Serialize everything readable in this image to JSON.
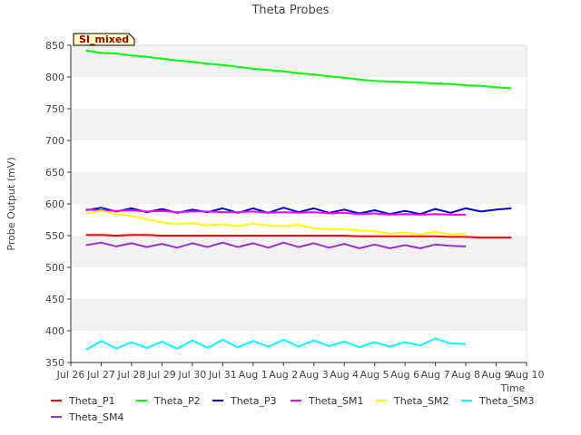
{
  "chart_data": {
    "type": "line",
    "title": "Theta Probes",
    "xlabel": "Time",
    "ylabel": "Probe Output (mV)",
    "ylim": [
      350,
      850
    ],
    "xlim": [
      0,
      15
    ],
    "yticks": [
      350,
      400,
      450,
      500,
      550,
      600,
      650,
      700,
      750,
      800,
      850
    ],
    "xtick_labels": [
      "Jul 26",
      "Jul 27",
      "Jul 28",
      "Jul 29",
      "Jul 30",
      "Jul 31",
      "Aug 1",
      "Aug 2",
      "Aug 3",
      "Aug 4",
      "Aug 5",
      "Aug 6",
      "Aug 7",
      "Aug 8",
      "Aug 9",
      "Aug 10"
    ],
    "annotation": "SI_mixed",
    "legend_placement": "bottom",
    "grid": "alternating horizontal bands",
    "series": [
      {
        "name": "Theta_P1",
        "color": "#ff0000",
        "x": [
          0.5,
          1,
          1.5,
          2,
          2.5,
          3,
          3.5,
          4,
          4.5,
          5,
          5.5,
          6,
          6.5,
          7,
          7.5,
          8,
          8.5,
          9,
          9.5,
          10,
          10.5,
          11,
          11.5,
          12,
          12.5,
          13,
          13.5,
          14,
          14.5
        ],
        "y": [
          551,
          551,
          550,
          551,
          551,
          550,
          550,
          550,
          550,
          550,
          550,
          550,
          550,
          550,
          550,
          550,
          550,
          550,
          549,
          549,
          549,
          549,
          549,
          549,
          548,
          548,
          547,
          547,
          547
        ]
      },
      {
        "name": "Theta_P2",
        "color": "#00ff00",
        "x": [
          0.5,
          1,
          1.5,
          2,
          2.5,
          3,
          3.5,
          4,
          4.5,
          5,
          5.5,
          6,
          6.5,
          7,
          7.5,
          8,
          8.5,
          9,
          9.5,
          10,
          10.5,
          11,
          11.5,
          12,
          12.5,
          13,
          13.5,
          14,
          14.5
        ],
        "y": [
          842,
          838,
          837,
          834,
          832,
          829,
          826,
          824,
          821,
          819,
          816,
          813,
          811,
          809,
          806,
          804,
          801,
          799,
          796,
          794,
          793,
          792,
          791,
          790,
          789,
          787,
          786,
          784,
          782
        ]
      },
      {
        "name": "Theta_P3",
        "color": "#0000cc",
        "x": [
          0.5,
          1,
          1.5,
          2,
          2.5,
          3,
          3.5,
          4,
          4.5,
          5,
          5.5,
          6,
          6.5,
          7,
          7.5,
          8,
          8.5,
          9,
          9.5,
          10,
          10.5,
          11,
          11.5,
          12,
          12.5,
          13,
          13.5,
          14,
          14.5
        ],
        "y": [
          590,
          594,
          588,
          593,
          587,
          592,
          586,
          591,
          587,
          593,
          586,
          593,
          586,
          594,
          587,
          593,
          586,
          591,
          585,
          590,
          584,
          589,
          584,
          592,
          586,
          593,
          588,
          591,
          593
        ]
      },
      {
        "name": "Theta_SM1",
        "color": "#ff00ff",
        "x": [
          0.5,
          1,
          1.5,
          2,
          2.5,
          3,
          3.5,
          4,
          4.5,
          5,
          5.5,
          6,
          6.5,
          7,
          7.5,
          8,
          8.5,
          9,
          9.5,
          10,
          10.5,
          11,
          11.5,
          12,
          12.5,
          13
        ],
        "y": [
          591,
          590,
          589,
          590,
          588,
          589,
          587,
          588,
          588,
          587,
          587,
          588,
          586,
          587,
          586,
          587,
          585,
          586,
          584,
          585,
          583,
          584,
          583,
          584,
          583,
          583
        ]
      },
      {
        "name": "Theta_SM2",
        "color": "#ffff00",
        "x": [
          0.5,
          1,
          1.5,
          2,
          2.5,
          3,
          3.5,
          4,
          4.5,
          5,
          5.5,
          6,
          6.5,
          7,
          7.5,
          8,
          8.5,
          9,
          9.5,
          10,
          10.5,
          11,
          11.5,
          12,
          12.5,
          13
        ],
        "y": [
          585,
          589,
          584,
          581,
          576,
          571,
          568,
          570,
          566,
          568,
          565,
          569,
          566,
          565,
          567,
          562,
          560,
          560,
          558,
          557,
          553,
          555,
          552,
          556,
          552,
          553
        ]
      },
      {
        "name": "Theta_SM3",
        "color": "#00ffff",
        "x": [
          0.5,
          1,
          1.5,
          2,
          2.5,
          3,
          3.5,
          4,
          4.5,
          5,
          5.5,
          6,
          6.5,
          7,
          7.5,
          8,
          8.5,
          9,
          9.5,
          10,
          10.5,
          11,
          11.5,
          12,
          12.5,
          13
        ],
        "y": [
          370,
          384,
          372,
          382,
          373,
          383,
          372,
          385,
          373,
          386,
          374,
          384,
          375,
          386,
          375,
          385,
          376,
          383,
          374,
          382,
          375,
          382,
          377,
          388,
          380,
          379
        ]
      },
      {
        "name": "Theta_SM4",
        "color": "#9933cc",
        "x": [
          0.5,
          1,
          1.5,
          2,
          2.5,
          3,
          3.5,
          4,
          4.5,
          5,
          5.5,
          6,
          6.5,
          7,
          7.5,
          8,
          8.5,
          9,
          9.5,
          10,
          10.5,
          11,
          11.5,
          12,
          12.5,
          13
        ],
        "y": [
          535,
          539,
          533,
          538,
          532,
          537,
          531,
          538,
          532,
          539,
          532,
          538,
          531,
          539,
          532,
          538,
          531,
          537,
          530,
          536,
          530,
          535,
          530,
          536,
          534,
          533
        ]
      }
    ]
  }
}
